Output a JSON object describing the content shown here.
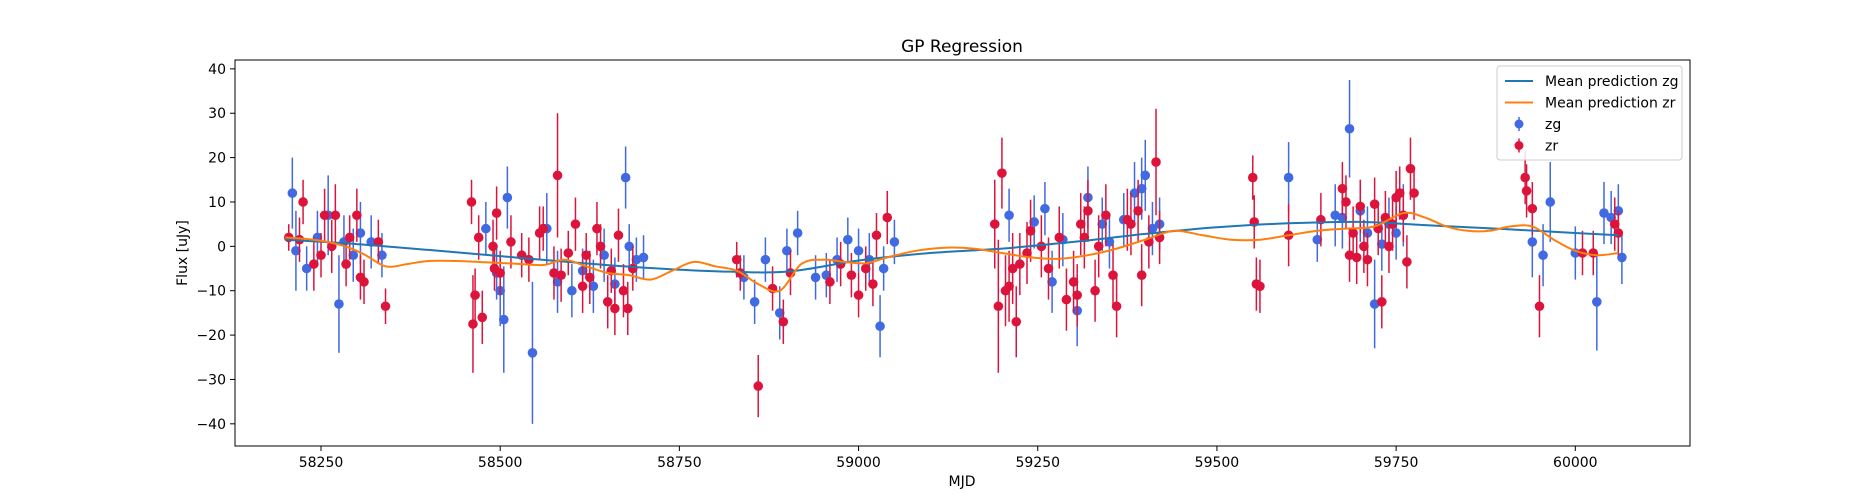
{
  "chart_data": {
    "type": "scatter",
    "title": "GP Regression",
    "xlabel": "MJD",
    "ylabel": "Flux [uJy]",
    "xlim": [
      58130,
      60160
    ],
    "ylim": [
      -45,
      42
    ],
    "xticks": [
      58250,
      58500,
      58750,
      59000,
      59250,
      59500,
      59750,
      60000
    ],
    "yticks": [
      -40,
      -30,
      -20,
      -10,
      0,
      10,
      20,
      30,
      40
    ],
    "grid": false,
    "legend_position": "top-right",
    "colors": {
      "zg_line": "#1f77b4",
      "zr_line": "#ff7f0e",
      "zg_points": "#4169e1",
      "zr_points": "#dc143c"
    },
    "legend": [
      {
        "label": "Mean prediction zg",
        "kind": "line",
        "color": "#1f77b4"
      },
      {
        "label": "Mean prediction zr",
        "kind": "line",
        "color": "#ff7f0e"
      },
      {
        "label": "zg",
        "kind": "errorbar",
        "color": "#4169e1"
      },
      {
        "label": "zr",
        "kind": "errorbar",
        "color": "#dc143c"
      }
    ],
    "series": [
      {
        "name": "Mean prediction zg",
        "kind": "line",
        "color": "#1f77b4",
        "x": [
          58200,
          58300,
          58400,
          58500,
          58600,
          58700,
          58800,
          58900,
          59000,
          59100,
          59200,
          59300,
          59400,
          59500,
          59600,
          59700,
          59800,
          59900,
          60000,
          60060
        ],
        "y": [
          1.5,
          0.5,
          -0.8,
          -2.2,
          -3.6,
          -4.8,
          -5.6,
          -5.7,
          -3.2,
          -1.5,
          -0.5,
          1.0,
          2.8,
          4.3,
          5.2,
          5.5,
          4.7,
          3.9,
          3.0,
          2.5
        ]
      },
      {
        "name": "Mean prediction zr",
        "kind": "line",
        "color": "#ff7f0e",
        "x": [
          58200,
          58240,
          58280,
          58310,
          58340,
          58370,
          58400,
          58440,
          58480,
          58520,
          58560,
          58590,
          58620,
          58650,
          58680,
          58710,
          58740,
          58770,
          58800,
          58830,
          58860,
          58890,
          58920,
          58950,
          58980,
          59010,
          59040,
          59080,
          59120,
          59160,
          59200,
          59240,
          59280,
          59320,
          59360,
          59400,
          59440,
          59480,
          59520,
          59560,
          59600,
          59640,
          59680,
          59720,
          59760,
          59790,
          59820,
          59850,
          59880,
          59910,
          59940,
          59970,
          60000,
          60030,
          60060
        ],
        "y": [
          2.0,
          1.5,
          0.2,
          -1.8,
          -4.5,
          -4.0,
          -3.3,
          -3.3,
          -3.6,
          -3.9,
          -4.2,
          -3.0,
          -4.5,
          -6.0,
          -6.5,
          -7.5,
          -5.5,
          -3.5,
          -4.5,
          -5.5,
          -8.5,
          -10.0,
          -4.0,
          -3.0,
          -3.5,
          -3.8,
          -2.5,
          -1.0,
          -0.3,
          -0.5,
          -1.5,
          -2.5,
          -2.8,
          -2.0,
          -0.5,
          1.5,
          3.5,
          2.5,
          1.5,
          1.5,
          2.5,
          3.5,
          4.0,
          4.5,
          7.5,
          6.5,
          4.5,
          3.5,
          3.5,
          4.5,
          4.5,
          1.5,
          -1.0,
          -2.0,
          -1.5
        ]
      },
      {
        "name": "zg",
        "kind": "errorbar",
        "color": "#4169e1",
        "x": [
          58210,
          58215,
          58230,
          58245,
          58260,
          58275,
          58282,
          58295,
          58305,
          58320,
          58335,
          58480,
          58495,
          58500,
          58505,
          58510,
          58545,
          58565,
          58580,
          58600,
          58615,
          58630,
          58645,
          58660,
          58675,
          58680,
          58690,
          58700,
          58840,
          58855,
          58870,
          58890,
          58900,
          58915,
          58940,
          58955,
          58970,
          58985,
          59000,
          59015,
          59030,
          59035,
          59050,
          59210,
          59245,
          59260,
          59270,
          59285,
          59305,
          59320,
          59340,
          59350,
          59370,
          59385,
          59395,
          59400,
          59410,
          59420,
          59600,
          59640,
          59665,
          59675,
          59685,
          59700,
          59710,
          59720,
          59730,
          59740,
          59750,
          59760,
          59940,
          59955,
          59965,
          60000,
          60030,
          60040,
          60050,
          60060,
          60065
        ],
        "y": [
          12.0,
          -1.0,
          -5.0,
          2.0,
          7.0,
          -13.0,
          1.0,
          -2.0,
          3.0,
          1.0,
          -2.0,
          4.0,
          -6.0,
          -10.0,
          -16.5,
          11.0,
          -24.0,
          4.0,
          -8.0,
          -10.0,
          -5.5,
          -9.0,
          -2.0,
          -8.5,
          15.5,
          0.0,
          -3.0,
          -2.5,
          -7.0,
          -12.5,
          -3.0,
          -15.0,
          -1.0,
          3.0,
          -7.0,
          -6.5,
          -3.0,
          1.5,
          -1.0,
          -3.0,
          -18.0,
          -5.0,
          1.0,
          7.0,
          5.5,
          8.5,
          -8.0,
          1.5,
          -14.5,
          11.0,
          5.0,
          1.0,
          6.0,
          12.0,
          13.0,
          16.0,
          4.0,
          5.0,
          15.5,
          1.5,
          7.0,
          6.5,
          26.5,
          8.0,
          3.0,
          -13.0,
          0.5,
          5.0,
          3.0,
          7.0,
          1.0,
          -2.0,
          10.0,
          -1.5,
          -12.5,
          7.5,
          6.5,
          8.0,
          -2.5
        ],
        "yerr": [
          8.0,
          9.0,
          5.0,
          6.0,
          9.0,
          11.0,
          6.0,
          6.0,
          7.0,
          6.0,
          5.0,
          6.0,
          6.0,
          8.0,
          12.0,
          7.0,
          16.0,
          8.0,
          7.0,
          6.0,
          5.0,
          6.0,
          6.0,
          6.0,
          7.0,
          5.0,
          5.0,
          5.0,
          5.0,
          5.0,
          5.0,
          6.0,
          5.0,
          5.0,
          5.0,
          5.0,
          5.0,
          5.0,
          5.0,
          6.0,
          7.0,
          5.0,
          5.0,
          6.0,
          6.0,
          6.0,
          7.0,
          6.0,
          8.0,
          7.0,
          6.0,
          6.0,
          6.0,
          7.0,
          7.0,
          8.0,
          6.0,
          6.0,
          8.0,
          5.0,
          7.0,
          7.0,
          11.0,
          7.0,
          6.0,
          10.0,
          6.0,
          6.0,
          6.0,
          7.0,
          8.0,
          7.0,
          9.0,
          6.0,
          11.0,
          7.0,
          6.0,
          6.0,
          6.0
        ]
      },
      {
        "name": "zr",
        "kind": "errorbar",
        "color": "#dc143c",
        "x": [
          58205,
          58220,
          58225,
          58240,
          58250,
          58255,
          58265,
          58270,
          58285,
          58290,
          58300,
          58305,
          58310,
          58330,
          58340,
          58460,
          58462,
          58465,
          58470,
          58475,
          58490,
          58492,
          58495,
          58500,
          58515,
          58530,
          58540,
          58555,
          58560,
          58575,
          58580,
          58585,
          58595,
          58605,
          58615,
          58620,
          58625,
          58635,
          58640,
          58650,
          58655,
          58660,
          58665,
          58672,
          58678,
          58685,
          58830,
          58835,
          58860,
          58880,
          58895,
          58905,
          58960,
          58975,
          58990,
          59000,
          59010,
          59020,
          59025,
          59040,
          59190,
          59195,
          59200,
          59205,
          59210,
          59215,
          59220,
          59225,
          59235,
          59240,
          59255,
          59265,
          59280,
          59290,
          59300,
          59305,
          59310,
          59315,
          59320,
          59330,
          59335,
          59345,
          59355,
          59360,
          59375,
          59380,
          59390,
          59395,
          59405,
          59415,
          59420,
          59550,
          59552,
          59555,
          59560,
          59600,
          59645,
          59675,
          59680,
          59685,
          59690,
          59695,
          59700,
          59705,
          59710,
          59720,
          59725,
          59730,
          59735,
          59740,
          59745,
          59750,
          59755,
          59760,
          59765,
          59770,
          59775,
          59930,
          59932,
          59940,
          59950,
          60010,
          60025,
          60055,
          60060
        ],
        "y": [
          2.0,
          1.5,
          10.0,
          -4.0,
          -2.0,
          7.0,
          0.0,
          7.0,
          -4.0,
          2.0,
          7.0,
          -7.0,
          -8.0,
          1.0,
          -13.5,
          10.0,
          -17.5,
          -11.0,
          2.0,
          -16.0,
          0.0,
          -5.0,
          7.5,
          -6.0,
          1.0,
          -2.0,
          -3.0,
          3.0,
          4.0,
          -6.0,
          16.0,
          -6.5,
          -1.5,
          5.0,
          -9.0,
          -2.0,
          -7.0,
          4.0,
          0.0,
          -12.5,
          -5.5,
          -14.0,
          2.5,
          -10.0,
          -14.0,
          -5.0,
          -3.0,
          -6.0,
          -31.5,
          -9.5,
          -17.0,
          -6.0,
          -8.0,
          -4.0,
          -6.5,
          -11.0,
          -5.0,
          -8.5,
          2.5,
          6.5,
          5.0,
          -13.5,
          16.5,
          -10.0,
          -9.0,
          -5.0,
          -17.0,
          -4.0,
          -1.5,
          3.5,
          0.0,
          -5.0,
          2.0,
          -12.0,
          -8.0,
          -11.0,
          5.0,
          2.0,
          8.0,
          -10.0,
          0.0,
          7.0,
          -6.5,
          -13.5,
          6.0,
          5.0,
          8.0,
          -6.5,
          1.0,
          19.0,
          2.0,
          15.5,
          5.5,
          -8.5,
          -9.0,
          2.5,
          6.0,
          13.0,
          10.0,
          -2.0,
          3.0,
          -2.5,
          9.0,
          0.0,
          -3.0,
          9.5,
          4.0,
          -12.5,
          6.5,
          0.0,
          5.0,
          11.0,
          12.0,
          7.0,
          -3.5,
          17.5,
          12.0,
          15.5,
          12.5,
          8.5,
          -13.5,
          -1.5,
          -1.5,
          5.0,
          3.0
        ],
        "yerr": [
          3.0,
          5.0,
          5.0,
          6.0,
          5.0,
          6.0,
          6.0,
          7.0,
          5.0,
          5.0,
          6.0,
          5.0,
          5.0,
          5.0,
          4.0,
          5.0,
          11.0,
          6.0,
          5.0,
          6.0,
          6.0,
          5.0,
          6.0,
          5.0,
          6.0,
          5.0,
          5.0,
          6.0,
          5.0,
          6.0,
          14.0,
          6.0,
          5.0,
          6.0,
          6.0,
          5.0,
          6.0,
          6.0,
          5.0,
          6.0,
          5.0,
          6.0,
          6.0,
          6.0,
          6.0,
          5.0,
          4.0,
          4.0,
          7.0,
          5.0,
          5.0,
          5.0,
          5.0,
          5.0,
          5.0,
          5.0,
          5.0,
          5.0,
          5.0,
          6.0,
          10.0,
          15.0,
          8.0,
          8.0,
          8.0,
          8.0,
          8.0,
          7.0,
          7.0,
          7.0,
          7.0,
          7.0,
          7.0,
          7.0,
          7.0,
          7.0,
          7.0,
          7.0,
          7.0,
          7.0,
          7.0,
          7.0,
          7.0,
          7.0,
          7.0,
          7.0,
          7.0,
          7.0,
          6.0,
          12.0,
          6.0,
          5.0,
          6.0,
          6.0,
          6.0,
          7.0,
          6.0,
          6.0,
          6.0,
          6.0,
          6.0,
          6.0,
          6.0,
          6.0,
          6.0,
          6.0,
          6.0,
          6.0,
          6.0,
          6.0,
          6.0,
          6.0,
          6.0,
          6.0,
          6.0,
          7.0,
          6.0,
          6.0,
          6.0,
          6.0,
          7.0,
          5.0,
          5.0,
          6.0,
          5.0
        ]
      }
    ]
  }
}
